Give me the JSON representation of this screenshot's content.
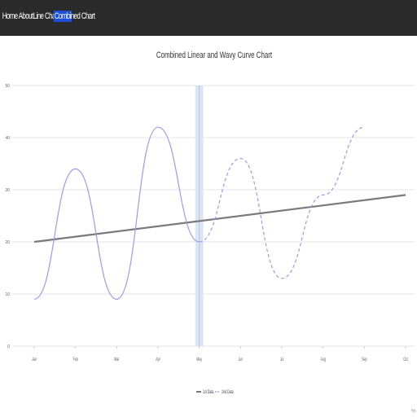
{
  "nav": {
    "items": [
      {
        "label": "Home"
      },
      {
        "label": "About"
      },
      {
        "label": "Line Chart"
      },
      {
        "label": "Combined Chart",
        "active": true
      }
    ],
    "active_color": "#1a4fd6",
    "bar_color": "#2b2b2b"
  },
  "chart_data": {
    "type": "line",
    "title": "Combined Linear and Wavy Curve Chart",
    "xlabel": "",
    "ylabel": "",
    "categories": [
      "Jan",
      "Feb",
      "Mar",
      "Apr",
      "May",
      "Jun",
      "Jul",
      "Aug",
      "Sep",
      "Oct"
    ],
    "ylim": [
      0,
      50
    ],
    "yticks": [
      "0",
      "10",
      "20",
      "30",
      "40",
      "50"
    ],
    "grid": true,
    "legend": "bottom",
    "series": [
      {
        "name": "1st Data",
        "style": "solid",
        "color": "#7a7a7a",
        "x": [
          "Jan",
          "Oct"
        ],
        "values": [
          20,
          29
        ]
      },
      {
        "name": "2nd Data",
        "style": "wavy",
        "color": "#9b9be8",
        "x": [
          "Jan",
          "Feb",
          "Mar",
          "Apr",
          "May",
          "Jun",
          "Jul",
          "Aug",
          "Sep"
        ],
        "values": [
          9,
          34,
          9,
          42,
          20,
          36,
          13,
          29,
          42
        ],
        "dashed_from": "May"
      }
    ],
    "highlight_category": "May",
    "corner_note": "Hjs"
  }
}
